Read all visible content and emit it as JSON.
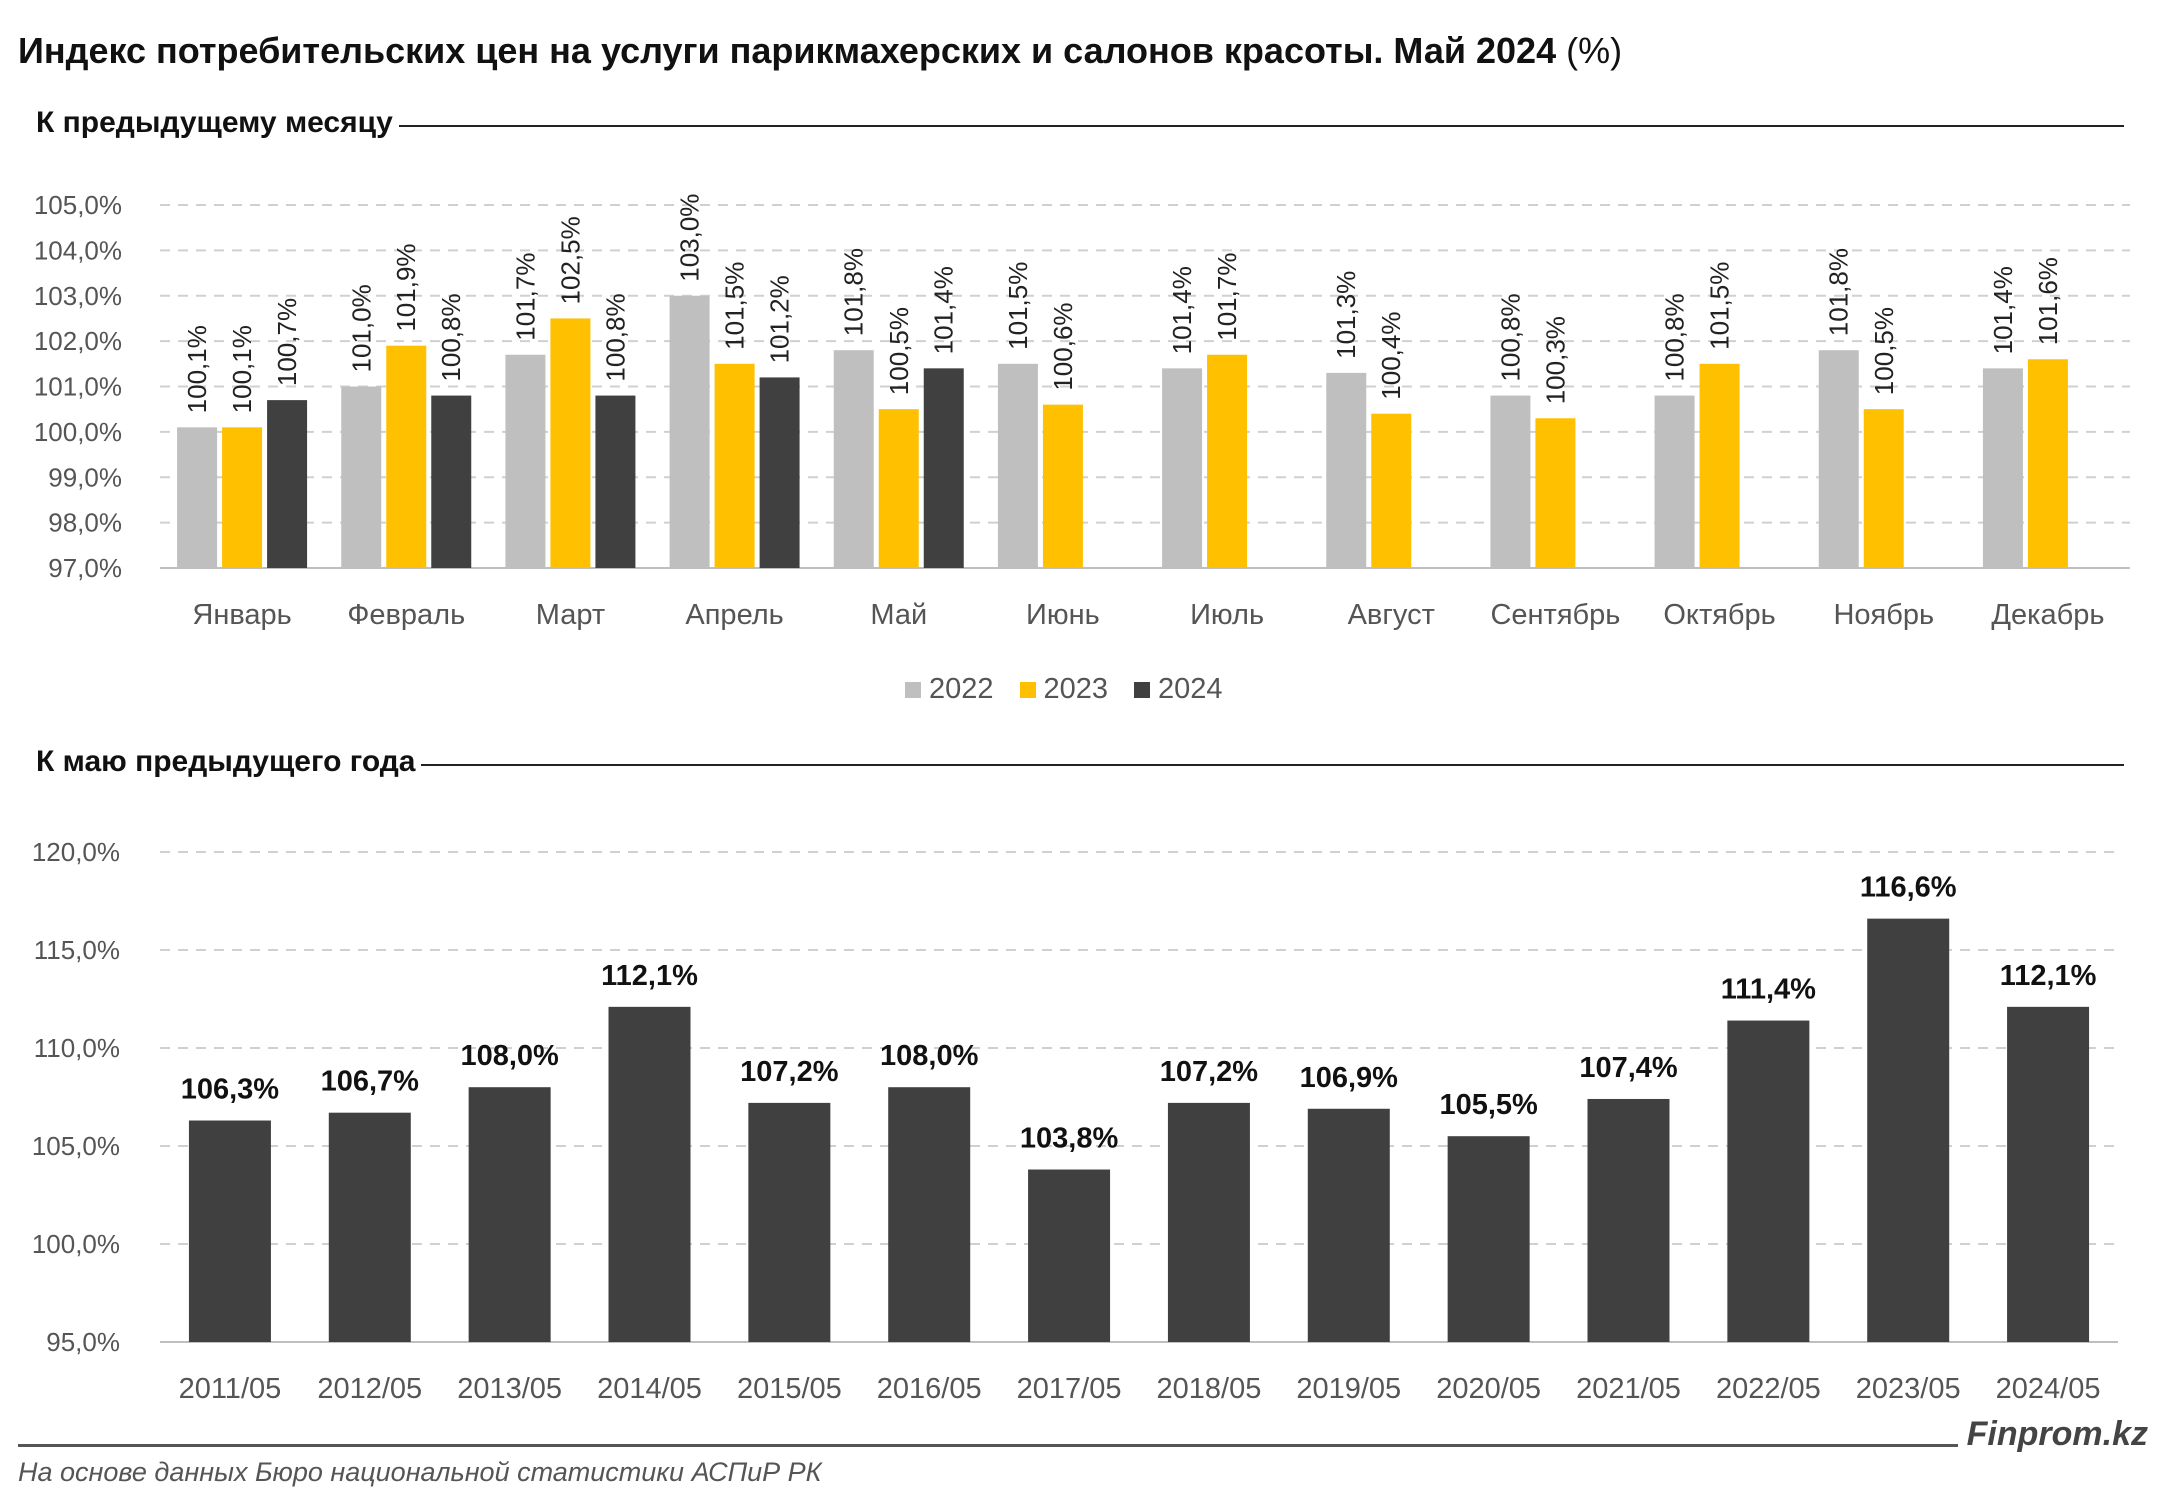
{
  "title": "Индекс потребительских цен на услуги парикмахерских и салонов красоты. Май 2024",
  "title_unit": "(%)",
  "chart_data": [
    {
      "type": "bar",
      "section_label": "К предыдущему месяцу",
      "categories": [
        "Январь",
        "Февраль",
        "Март",
        "Апрель",
        "Май",
        "Июнь",
        "Июль",
        "Август",
        "Сентябрь",
        "Октябрь",
        "Ноябрь",
        "Декабрь"
      ],
      "series": [
        {
          "name": "2022",
          "color": "#bfbfbf",
          "values": [
            100.1,
            101.0,
            101.7,
            103.0,
            101.8,
            101.5,
            101.4,
            101.3,
            100.8,
            100.8,
            101.8,
            101.4
          ],
          "labels": [
            "100,1%",
            "101,0%",
            "101,7%",
            "103,0%",
            "101,8%",
            "101,5%",
            "101,4%",
            "101,3%",
            "100,8%",
            "100,8%",
            "101,8%",
            "101,4%"
          ]
        },
        {
          "name": "2023",
          "color": "#ffc000",
          "values": [
            100.1,
            101.9,
            102.5,
            101.5,
            100.5,
            100.6,
            101.7,
            100.4,
            100.3,
            101.5,
            100.5,
            101.6
          ],
          "labels": [
            "100,1%",
            "101,9%",
            "102,5%",
            "101,5%",
            "100,5%",
            "100,6%",
            "101,7%",
            "100,4%",
            "100,3%",
            "101,5%",
            "100,5%",
            "101,6%"
          ]
        },
        {
          "name": "2024",
          "color": "#404040",
          "values": [
            100.7,
            100.8,
            100.8,
            101.2,
            101.4,
            null,
            null,
            null,
            null,
            null,
            null,
            null
          ],
          "labels": [
            "100,7%",
            "100,8%",
            "100,8%",
            "101,2%",
            "101,4%",
            null,
            null,
            null,
            null,
            null,
            null,
            null
          ]
        }
      ],
      "ylim": [
        97,
        105
      ],
      "yticks": [
        97,
        98,
        99,
        100,
        101,
        102,
        103,
        104,
        105
      ],
      "ytick_labels": [
        "97,0%",
        "98,0%",
        "99,0%",
        "100,0%",
        "101,0%",
        "102,0%",
        "103,0%",
        "104,0%",
        "105,0%"
      ],
      "grid": true,
      "legend": "bottom"
    },
    {
      "type": "bar",
      "section_label": "К маю предыдущего года",
      "categories": [
        "2011/05",
        "2012/05",
        "2013/05",
        "2014/05",
        "2015/05",
        "2016/05",
        "2017/05",
        "2018/05",
        "2019/05",
        "2020/05",
        "2021/05",
        "2022/05",
        "2023/05",
        "2024/05"
      ],
      "series": [
        {
          "color": "#404040",
          "values": [
            106.3,
            106.7,
            108.0,
            112.1,
            107.2,
            108.0,
            103.8,
            107.2,
            106.9,
            105.5,
            107.4,
            111.4,
            116.6,
            112.1
          ],
          "labels": [
            "106,3%",
            "106,7%",
            "108,0%",
            "112,1%",
            "107,2%",
            "108,0%",
            "103,8%",
            "107,2%",
            "106,9%",
            "105,5%",
            "107,4%",
            "111,4%",
            "116,6%",
            "112,1%"
          ]
        }
      ],
      "ylim": [
        95,
        120
      ],
      "yticks": [
        95,
        100,
        105,
        110,
        115,
        120
      ],
      "ytick_labels": [
        "95,0%",
        "100,0%",
        "105,0%",
        "110,0%",
        "115,0%",
        "120,0%"
      ],
      "grid": true
    }
  ],
  "footer": {
    "brand": "Finprom.kz",
    "source": "На основе данных Бюро национальной статистики АСПиР РК"
  }
}
